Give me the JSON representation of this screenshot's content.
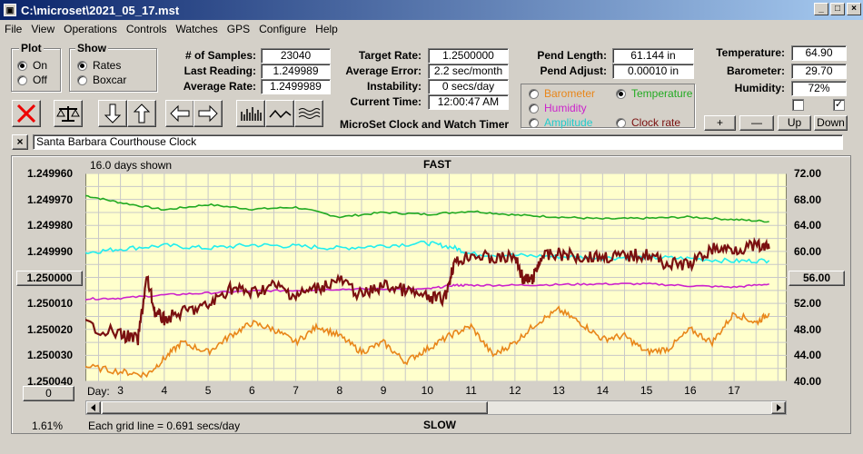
{
  "window": {
    "title": "C:\\microset\\2021_05_17.mst",
    "icon": "app-icon",
    "controls": [
      "_",
      "□",
      "×"
    ]
  },
  "menu": [
    "File",
    "View",
    "Operations",
    "Controls",
    "Watches",
    "GPS",
    "Configure",
    "Help"
  ],
  "plot_group": {
    "title": "Plot",
    "options": [
      {
        "label": "On",
        "selected": true
      },
      {
        "label": "Off",
        "selected": false
      }
    ]
  },
  "show_group": {
    "title": "Show",
    "options": [
      {
        "label": "Rates",
        "selected": true
      },
      {
        "label": "Boxcar",
        "selected": false
      }
    ]
  },
  "stats": {
    "samples_label": "# of Samples:",
    "samples": "23040",
    "last_label": "Last Reading:",
    "last": "1.249989",
    "avg_label": "Average Rate:",
    "avg": "1.2499989",
    "target_label": "Target Rate:",
    "target": "1.2500000",
    "avgerr_label": "Average Error:",
    "avgerr": "2.2 sec/month",
    "instab_label": "Instability:",
    "instab": "0 secs/day",
    "time_label": "Current Time:",
    "time": "12:00:47 AM",
    "pendlen_label": "Pend Length:",
    "pendlen": "61.144 in",
    "pendadj_label": "Pend Adjust:",
    "pendadj": "0.00010 in",
    "temp_label": "Temperature:",
    "temp": "64.90",
    "baro_label": "Barometer:",
    "baro": "29.70",
    "hum_label": "Humidity:",
    "hum": "72%"
  },
  "app_caption": "MicroSet Clock and Watch Timer",
  "sensor_options": [
    {
      "label": "Barometer",
      "color": "#e8861a",
      "selected": false
    },
    {
      "label": "Temperature",
      "color": "#22aa22",
      "selected": true
    },
    {
      "label": "Humidity",
      "color": "#cc22cc",
      "selected": false
    },
    {
      "label": "Amplitude",
      "color": "#22cccc",
      "selected": false
    },
    {
      "label": "Clock rate",
      "color": "#7a1010",
      "selected": false
    }
  ],
  "checkboxes": [
    {
      "checked": false
    },
    {
      "checked": true
    }
  ],
  "scale_buttons": [
    "+",
    "—",
    "Up",
    "Down"
  ],
  "clock_name": "Santa Barbara Courthouse Clock",
  "close_x": "×",
  "chart_header": {
    "days_shown": "16.0 days shown",
    "top": "FAST",
    "bottom": "SLOW",
    "grid_note": "Each grid line = 0.691 secs/day",
    "percent": "1.61%",
    "day_label": "Day:",
    "left_btn": "1.250000",
    "right_btn": "56.00",
    "zero_btn": "0"
  },
  "colors": {
    "plot_bg": "#ffffcc",
    "temperature": "#22aa22",
    "barometer": "#e8861a",
    "humidity": "#cc22cc",
    "amplitude": "#22eeee",
    "clock_rate": "#7a1010"
  },
  "chart_data": {
    "type": "line",
    "x_label": "Day:",
    "x_ticks": [
      3,
      4,
      5,
      6,
      7,
      8,
      9,
      10,
      11,
      12,
      13,
      14,
      15,
      16,
      17
    ],
    "xlim": [
      2.2,
      18.2
    ],
    "y_left_ticks": [
      "1.249960",
      "1.249970",
      "1.249980",
      "1.249990",
      "1.250000",
      "1.250010",
      "1.250020",
      "1.250030",
      "1.250040"
    ],
    "ylim_left": [
      1.25004,
      1.24996
    ],
    "y_right_ticks": [
      "72.00",
      "68.00",
      "64.00",
      "60.00",
      "56.00",
      "52.00",
      "48.00",
      "44.00",
      "40.00"
    ],
    "ylim_right": [
      40,
      72
    ],
    "grid": true,
    "series": [
      {
        "name": "Temperature",
        "color": "#22aa22",
        "x": [
          2.2,
          3,
          4,
          5,
          6,
          7,
          8,
          9,
          10,
          11,
          12,
          13,
          14,
          15,
          16,
          17,
          17.8
        ],
        "y": [
          68.6,
          67.5,
          66.4,
          67.2,
          66.5,
          66.8,
          65.3,
          66.0,
          65.7,
          66.2,
          65.6,
          65.3,
          65.0,
          65.1,
          65.3,
          64.9,
          64.6
        ]
      },
      {
        "name": "Amplitude",
        "color": "#22eeee",
        "x": [
          2.2,
          3,
          4,
          5,
          6,
          7,
          8,
          9,
          10,
          10.6,
          11,
          12,
          13,
          14,
          15,
          16,
          17,
          17.8
        ],
        "y": [
          59.8,
          60.4,
          60.9,
          60.5,
          61.0,
          60.8,
          60.5,
          60.9,
          61.3,
          60.6,
          59.6,
          59.4,
          59.2,
          59.0,
          59.1,
          58.9,
          58.5,
          58.6
        ]
      },
      {
        "name": "Humidity",
        "color": "#cc22cc",
        "x": [
          2.2,
          3,
          4,
          5,
          6,
          7,
          8,
          9,
          10,
          10.6,
          11,
          12,
          13,
          14,
          15,
          16,
          17,
          17.8
        ],
        "y": [
          52.7,
          52.8,
          53.3,
          53.6,
          53.9,
          54.0,
          54.2,
          54.2,
          54.2,
          54.8,
          54.8,
          54.8,
          54.9,
          55.0,
          55.0,
          54.7,
          54.5,
          55.0
        ]
      },
      {
        "name": "Barometer",
        "color": "#e8861a",
        "x": [
          2.2,
          3,
          3.6,
          4,
          4.4,
          5,
          5.5,
          6,
          6.5,
          7,
          7.5,
          8,
          8.5,
          9,
          9.5,
          10,
          10.5,
          11,
          11.5,
          12,
          12.5,
          13,
          13.5,
          14,
          14.5,
          15,
          15.5,
          16,
          16.5,
          17,
          17.5,
          17.8
        ],
        "y": [
          42.3,
          41.5,
          41.0,
          43.5,
          46.0,
          44.5,
          47.0,
          49.0,
          48.0,
          46.0,
          48.5,
          47.0,
          44.5,
          46.0,
          43.0,
          45.0,
          47.0,
          48.5,
          44.0,
          46.0,
          49.0,
          51.0,
          49.0,
          46.5,
          47.0,
          44.5,
          45.0,
          48.0,
          46.0,
          50.5,
          49.0,
          50.5
        ]
      },
      {
        "name": "Clock rate",
        "color": "#7a1010",
        "x": [
          2.2,
          3,
          3.4,
          3.6,
          3.8,
          4,
          4.5,
          5,
          5.5,
          6,
          6.5,
          7,
          7.5,
          8,
          8.5,
          9,
          9.5,
          10,
          10.4,
          10.6,
          11,
          11.5,
          12,
          12.2,
          12.4,
          12.6,
          13,
          13.5,
          14,
          14.5,
          15,
          15.5,
          16,
          16.5,
          17,
          17.5,
          17.8
        ],
        "y": [
          1.250018,
          1.250022,
          1.250024,
          1.25,
          1.250014,
          1.250016,
          1.250013,
          1.250011,
          1.250004,
          1.250006,
          1.250003,
          1.250007,
          1.250004,
          1.250001,
          1.250007,
          1.250003,
          1.250005,
          1.250008,
          1.250008,
          1.249995,
          1.249991,
          1.249993,
          1.249992,
          1.250001,
          1.250001,
          1.249992,
          1.249991,
          1.249992,
          1.249992,
          1.249992,
          1.249991,
          1.249995,
          1.249995,
          1.249989,
          1.249989,
          1.249988,
          1.249989
        ]
      }
    ]
  }
}
